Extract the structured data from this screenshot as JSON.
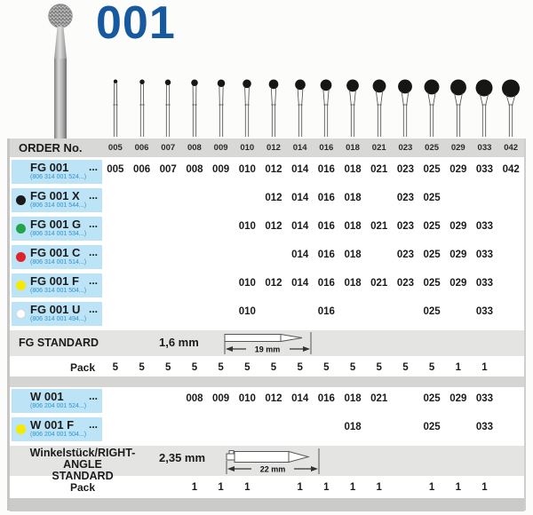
{
  "title": "001",
  "ellipsis": "...",
  "order_header": {
    "label": "ORDER No.",
    "sizes": [
      "005",
      "006",
      "007",
      "008",
      "009",
      "010",
      "012",
      "014",
      "016",
      "018",
      "021",
      "023",
      "025",
      "029",
      "033",
      "042"
    ]
  },
  "fg_table": {
    "rows": [
      {
        "name": "FG 001",
        "dot": "",
        "subcode": "(806 314 001 524...)",
        "values": [
          "005",
          "006",
          "007",
          "008",
          "009",
          "010",
          "012",
          "014",
          "016",
          "018",
          "021",
          "023",
          "025",
          "029",
          "033",
          "042"
        ]
      },
      {
        "name": "FG 001 X",
        "dot": "black",
        "subcode": "(806 314 001 544...)",
        "values": [
          "",
          "",
          "",
          "",
          "",
          "",
          "012",
          "014",
          "016",
          "018",
          "",
          "023",
          "025",
          "",
          "",
          ""
        ]
      },
      {
        "name": "FG 001 G",
        "dot": "green",
        "subcode": "(806 314 001 534...)",
        "values": [
          "",
          "",
          "",
          "",
          "",
          "010",
          "012",
          "014",
          "016",
          "018",
          "021",
          "023",
          "025",
          "029",
          "033",
          ""
        ]
      },
      {
        "name": "FG 001 C",
        "dot": "red",
        "subcode": "(806 314 001 514...)",
        "values": [
          "",
          "",
          "",
          "",
          "",
          "",
          "",
          "014",
          "016",
          "018",
          "",
          "023",
          "025",
          "029",
          "033",
          ""
        ]
      },
      {
        "name": "FG 001 F",
        "dot": "yellow",
        "subcode": "(806 314 001 504...)",
        "values": [
          "",
          "",
          "",
          "",
          "",
          "010",
          "012",
          "014",
          "016",
          "018",
          "021",
          "023",
          "025",
          "029",
          "033",
          ""
        ]
      },
      {
        "name": "FG 001 U",
        "dot": "white",
        "subcode": "(806 314 001 494...)",
        "values": [
          "",
          "",
          "",
          "",
          "",
          "010",
          "",
          "",
          "016",
          "",
          "",
          "",
          "025",
          "",
          "033",
          ""
        ]
      }
    ],
    "standard": {
      "label": "FG STANDARD",
      "shank_diameter": "1,6 mm",
      "shank_length": "19 mm"
    },
    "pack": {
      "label": "Pack",
      "values": [
        "5",
        "5",
        "5",
        "5",
        "5",
        "5",
        "5",
        "5",
        "5",
        "5",
        "5",
        "5",
        "5",
        "1",
        "1",
        ""
      ]
    }
  },
  "w_table": {
    "rows": [
      {
        "name": "W 001",
        "dot": "",
        "subcode": "(806 204 001 524...)",
        "values": [
          "",
          "",
          "",
          "008",
          "009",
          "010",
          "012",
          "014",
          "016",
          "018",
          "021",
          "",
          "025",
          "029",
          "033",
          ""
        ]
      },
      {
        "name": "W 001 F",
        "dot": "yellow",
        "subcode": "(806 204 001 504...)",
        "values": [
          "",
          "",
          "",
          "",
          "",
          "",
          "",
          "",
          "",
          "018",
          "",
          "",
          "025",
          "",
          "033",
          ""
        ]
      }
    ],
    "standard": {
      "label_line1": "Winkelstück/RIGHT-ANGLE",
      "label_line2": "STANDARD",
      "shank_diameter": "2,35 mm",
      "shank_length": "22 mm"
    },
    "pack": {
      "label": "Pack",
      "values": [
        "",
        "",
        "",
        "1",
        "1",
        "1",
        "",
        "1",
        "1",
        "1",
        "1",
        "",
        "1",
        "1",
        "1",
        ""
      ]
    }
  },
  "colors": {
    "accent_blue": "#17599f",
    "label_bg": "#bce3f6",
    "code_blue": "#2e93cf",
    "dot_black": "#1a1a1a",
    "dot_green": "#22a34c",
    "dot_red": "#e0232a",
    "dot_yellow": "#f6ea00",
    "dot_white": "#ffffff"
  }
}
